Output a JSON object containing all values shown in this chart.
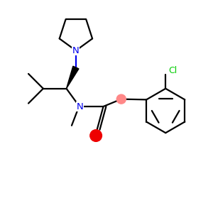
{
  "bg_color": "#ffffff",
  "bond_color": "#000000",
  "N_color": "#0000ee",
  "O_color": "#ee0000",
  "Cl_color": "#00cc00",
  "CH2_color": "#ff8888",
  "figsize": [
    3.0,
    3.0
  ],
  "dpi": 100,
  "xlim": [
    0,
    10
  ],
  "ylim": [
    0,
    10
  ]
}
